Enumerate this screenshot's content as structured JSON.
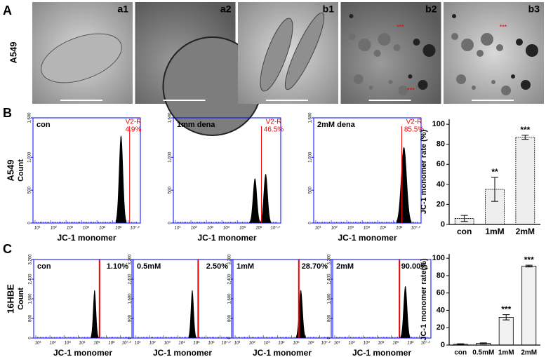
{
  "panel_labels": [
    "A",
    "B",
    "C"
  ],
  "microscopy": {
    "row_label": "A549",
    "images": [
      {
        "label": "a1"
      },
      {
        "label": "a2"
      },
      {
        "label": "b1"
      },
      {
        "label": "b2",
        "markers": [
          "***",
          "***"
        ]
      },
      {
        "label": "b3",
        "markers": [
          "***"
        ]
      }
    ]
  },
  "flow_b": {
    "row_label": "A549",
    "y_label": "Count",
    "x_label": "JC-1 monomer",
    "ylim": [
      0,
      1600
    ],
    "yticks": [
      0,
      500,
      {
        "value": 1000,
        "label": "1,000"
      },
      {
        "value": 1600,
        "label": "1,600"
      }
    ],
    "xticks": [
      "10¹",
      "10²",
      "10³",
      "10⁴",
      "10⁵",
      "10⁶",
      "10⁷·²"
    ],
    "panels": [
      {
        "sample": "con",
        "gate": "V2-R",
        "percent": "4.9%"
      },
      {
        "sample": "1mm dena",
        "gate": "V2-R",
        "percent": "46.5%"
      },
      {
        "sample": "2mM dena",
        "gate": "V2-R",
        "percent": "85.5%"
      }
    ]
  },
  "flow_c": {
    "row_label": "16HBE",
    "y_label": "Count",
    "x_label": "JC-1 monomer",
    "ylim": [
      0,
      3200
    ],
    "yticks": [
      0,
      800,
      {
        "value": 1600,
        "label": "1,600"
      },
      {
        "value": 2400,
        "label": "2,400"
      },
      {
        "value": 3200,
        "label": "3,200"
      }
    ],
    "xticks": [
      "10¹",
      "10²",
      "10³",
      "10⁴",
      "10⁵",
      "10⁶",
      "10⁷·²"
    ],
    "panels": [
      {
        "sample": "con",
        "percent": "1.10%"
      },
      {
        "sample": "0.5mM",
        "percent": "2.50%"
      },
      {
        "sample": "1mM",
        "percent": "28.70%"
      },
      {
        "sample": "2mM",
        "percent": "90.00%"
      }
    ]
  },
  "chart_data": [
    {
      "type": "bar",
      "y_label": "JC-1 monomer rate (%)",
      "categories": [
        "con",
        "1mM",
        "2mM"
      ],
      "values": [
        6,
        35,
        87
      ],
      "errors": [
        3,
        12,
        2
      ],
      "significance": [
        null,
        "**",
        "***"
      ],
      "ylim": [
        0,
        105
      ],
      "yticks": [
        0,
        20,
        40,
        60,
        80,
        100
      ],
      "color": "#eeeeee"
    },
    {
      "type": "bar",
      "y_label": "JC-1 monomer rate(%)",
      "categories": [
        "con",
        "0.5mM",
        "1mM",
        "2mM"
      ],
      "values": [
        1,
        2,
        32,
        91
      ],
      "errors": [
        0.5,
        0.5,
        3,
        1
      ],
      "significance": [
        null,
        null,
        "***",
        "***"
      ],
      "ylim": [
        0,
        105
      ],
      "yticks": [
        0,
        20,
        40,
        60,
        80,
        100
      ],
      "color": "#f2f2f2"
    }
  ]
}
